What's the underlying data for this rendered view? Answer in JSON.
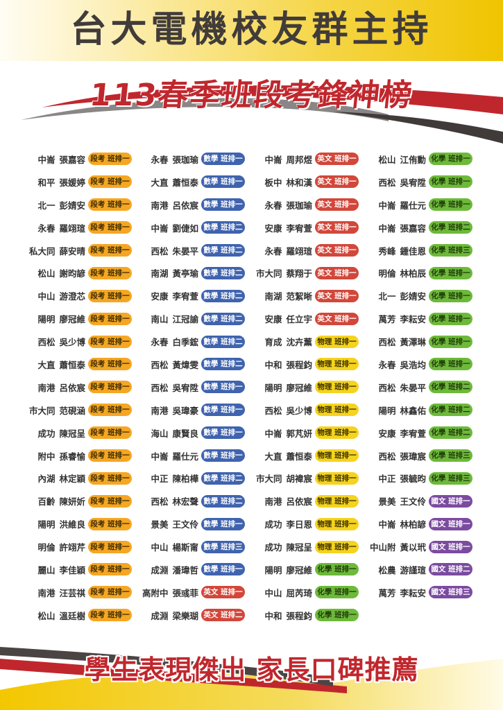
{
  "header": {
    "sponsor": "台大電機校友群主持",
    "title": "113春季班段考鋒神榜"
  },
  "footer": {
    "slogan": "學生表現傑出 家長口碑推薦"
  },
  "badge_colors": {
    "段考": {
      "bg": "#F5A623",
      "fg": "#3a2a00"
    },
    "數學": {
      "bg": "#3F63AE",
      "fg": "#ffffff"
    },
    "英文": {
      "bg": "#D2473A",
      "fg": "#ffffff"
    },
    "物理": {
      "bg": "#F5D31E",
      "fg": "#3a3000"
    },
    "化學": {
      "bg": "#6DB93A",
      "fg": "#1f3a0a"
    },
    "國文": {
      "bg": "#7B4BA0",
      "fg": "#ffffff"
    }
  },
  "columns": [
    [
      {
        "school": "中崙",
        "name": "張嘉容",
        "award": "段考 班排一"
      },
      {
        "school": "和平",
        "name": "張媛婷",
        "award": "段考 班排一"
      },
      {
        "school": "北一",
        "name": "彭婧安",
        "award": "段考 班排一"
      },
      {
        "school": "永春",
        "name": "羅翊瑄",
        "award": "段考 班排一"
      },
      {
        "school": "私大同",
        "name": "薛安晴",
        "award": "段考 班排一"
      },
      {
        "school": "松山",
        "name": "謝昀諺",
        "award": "段考 班排一"
      },
      {
        "school": "中山",
        "name": "游澄芯",
        "award": "段考 班排一"
      },
      {
        "school": "陽明",
        "name": "廖冠維",
        "award": "段考 班排一"
      },
      {
        "school": "西松",
        "name": "吳少博",
        "award": "段考 班排一"
      },
      {
        "school": "大直",
        "name": "蕭恒泰",
        "award": "段考 班排一"
      },
      {
        "school": "南港",
        "name": "呂依宸",
        "award": "段考 班排一"
      },
      {
        "school": "市大同",
        "name": "范硯涵",
        "award": "段考 班排一"
      },
      {
        "school": "成功",
        "name": "陳冠呈",
        "award": "段考 班排一"
      },
      {
        "school": "附中",
        "name": "孫睿愉",
        "award": "段考 班排一"
      },
      {
        "school": "內湖",
        "name": "林定穎",
        "award": "段考 班排一"
      },
      {
        "school": "百齡",
        "name": "陳妍妡",
        "award": "段考 班排一"
      },
      {
        "school": "陽明",
        "name": "洪維良",
        "award": "段考 班排一"
      },
      {
        "school": "明倫",
        "name": "許翊芹",
        "award": "段考 班排一"
      },
      {
        "school": "麗山",
        "name": "李佳穎",
        "award": "段考 班排一"
      },
      {
        "school": "南港",
        "name": "汪芸祺",
        "award": "段考 班排一"
      },
      {
        "school": "松山",
        "name": "溫廷樹",
        "award": "段考 班排一"
      }
    ],
    [
      {
        "school": "永春",
        "name": "張珈瑜",
        "award": "數學 班排一"
      },
      {
        "school": "大直",
        "name": "蕭恒泰",
        "award": "數學 班排一"
      },
      {
        "school": "南港",
        "name": "呂依宸",
        "award": "數學 班排一"
      },
      {
        "school": "中崙",
        "name": "劉倢如",
        "award": "數學 班排二"
      },
      {
        "school": "西松",
        "name": "朱晏平",
        "award": "數學 班排二"
      },
      {
        "school": "南湖",
        "name": "黃亭瑜",
        "award": "數學 班排二"
      },
      {
        "school": "安康",
        "name": "李宥萱",
        "award": "數學 班排二"
      },
      {
        "school": "南山",
        "name": "江冠諭",
        "award": "數學 班排二"
      },
      {
        "school": "永春",
        "name": "白季鋐",
        "award": "數學 班排二"
      },
      {
        "school": "西松",
        "name": "黃煒雯",
        "award": "數學 班排二"
      },
      {
        "school": "西松",
        "name": "吳宥陞",
        "award": "數學 班排一"
      },
      {
        "school": "南港",
        "name": "吳瑋豪",
        "award": "數學 班排一"
      },
      {
        "school": "海山",
        "name": "康賢良",
        "award": "數學 班排一"
      },
      {
        "school": "中崙",
        "name": "羅仕元",
        "award": "數學 班排一"
      },
      {
        "school": "中正",
        "name": "陳柏樺",
        "award": "數學 班排二"
      },
      {
        "school": "西松",
        "name": "林宏聲",
        "award": "數學 班排二"
      },
      {
        "school": "景美",
        "name": "王文伶",
        "award": "數學 班排一"
      },
      {
        "school": "中山",
        "name": "楊斯甯",
        "award": "數學 班排三"
      },
      {
        "school": "成淵",
        "name": "潘瑋哲",
        "award": "數學 班排一"
      },
      {
        "school": "高附中",
        "name": "張彧菲",
        "award": "英文 班排一"
      },
      {
        "school": "成淵",
        "name": "梁樂瑚",
        "award": "英文 班排二"
      }
    ],
    [
      {
        "school": "中崙",
        "name": "周邦煜",
        "award": "英文 班排一"
      },
      {
        "school": "板中",
        "name": "林和漢",
        "award": "英文 班排一"
      },
      {
        "school": "永春",
        "name": "張珈瑜",
        "award": "英文 班排一"
      },
      {
        "school": "安康",
        "name": "李宥萱",
        "award": "英文 班排一"
      },
      {
        "school": "永春",
        "name": "羅翊瑄",
        "award": "英文 班排一"
      },
      {
        "school": "市大同",
        "name": "蔡翔于",
        "award": "英文 班排一"
      },
      {
        "school": "南湖",
        "name": "范絜晰",
        "award": "英文 班排一"
      },
      {
        "school": "安康",
        "name": "任立宇",
        "award": "英文 班排一"
      },
      {
        "school": "育成",
        "name": "沈卉薰",
        "award": "物理 班排一"
      },
      {
        "school": "中和",
        "name": "張程鈞",
        "award": "物理 班排一"
      },
      {
        "school": "陽明",
        "name": "廖冠維",
        "award": "物理 班排一"
      },
      {
        "school": "西松",
        "name": "吳少博",
        "award": "物理 班排一"
      },
      {
        "school": "中崙",
        "name": "郭芃妍",
        "award": "物理 班排一"
      },
      {
        "school": "大直",
        "name": "蕭恒泰",
        "award": "物理 班排一"
      },
      {
        "school": "市大同",
        "name": "胡褘宸",
        "award": "物理 班排一"
      },
      {
        "school": "南港",
        "name": "呂依宸",
        "award": "物理 班排一"
      },
      {
        "school": "成功",
        "name": "李日恩",
        "award": "物理 班排一"
      },
      {
        "school": "成功",
        "name": "陳冠呈",
        "award": "物理 班排一"
      },
      {
        "school": "陽明",
        "name": "廖冠維",
        "award": "化學 班排一"
      },
      {
        "school": "中山",
        "name": "屈芮琦",
        "award": "化學 班排一"
      },
      {
        "school": "中和",
        "name": "張程鈞",
        "award": "化學 班排一"
      }
    ],
    [
      {
        "school": "松山",
        "name": "江侑勳",
        "award": "化學 班排一"
      },
      {
        "school": "西松",
        "name": "吳宥陞",
        "award": "化學 班排一"
      },
      {
        "school": "中崙",
        "name": "羅仕元",
        "award": "化學 班排一"
      },
      {
        "school": "中崙",
        "name": "張嘉容",
        "award": "化學 班排二"
      },
      {
        "school": "秀峰",
        "name": "鍾佳恩",
        "award": "化學 班排三"
      },
      {
        "school": "明倫",
        "name": "林柏辰",
        "award": "化學 班排一"
      },
      {
        "school": "北一",
        "name": "彭婧安",
        "award": "化學 班排一"
      },
      {
        "school": "萬芳",
        "name": "李耘安",
        "award": "化學 班排一"
      },
      {
        "school": "西松",
        "name": "黃澤琳",
        "award": "化學 班排一"
      },
      {
        "school": "永春",
        "name": "吳浩均",
        "award": "化學 班排一"
      },
      {
        "school": "西松",
        "name": "朱晏平",
        "award": "化學 班排二"
      },
      {
        "school": "陽明",
        "name": "林鑫佑",
        "award": "化學 班排二"
      },
      {
        "school": "安康",
        "name": "李宥萱",
        "award": "化學 班排二"
      },
      {
        "school": "西松",
        "name": "張瑋宸",
        "award": "化學 班排三"
      },
      {
        "school": "中正",
        "name": "張毓昀",
        "award": "化學 班排三"
      },
      {
        "school": "景美",
        "name": "王文伶",
        "award": "國文 班排一"
      },
      {
        "school": "中崙",
        "name": "林柏諺",
        "award": "國文 班排一"
      },
      {
        "school": "中山附",
        "name": "黃以玳",
        "award": "國文 班排一"
      },
      {
        "school": "松農",
        "name": "游謹瑄",
        "award": "國文 班排二"
      },
      {
        "school": "萬芳",
        "name": "李耘安",
        "award": "國文 班排三"
      }
    ]
  ]
}
